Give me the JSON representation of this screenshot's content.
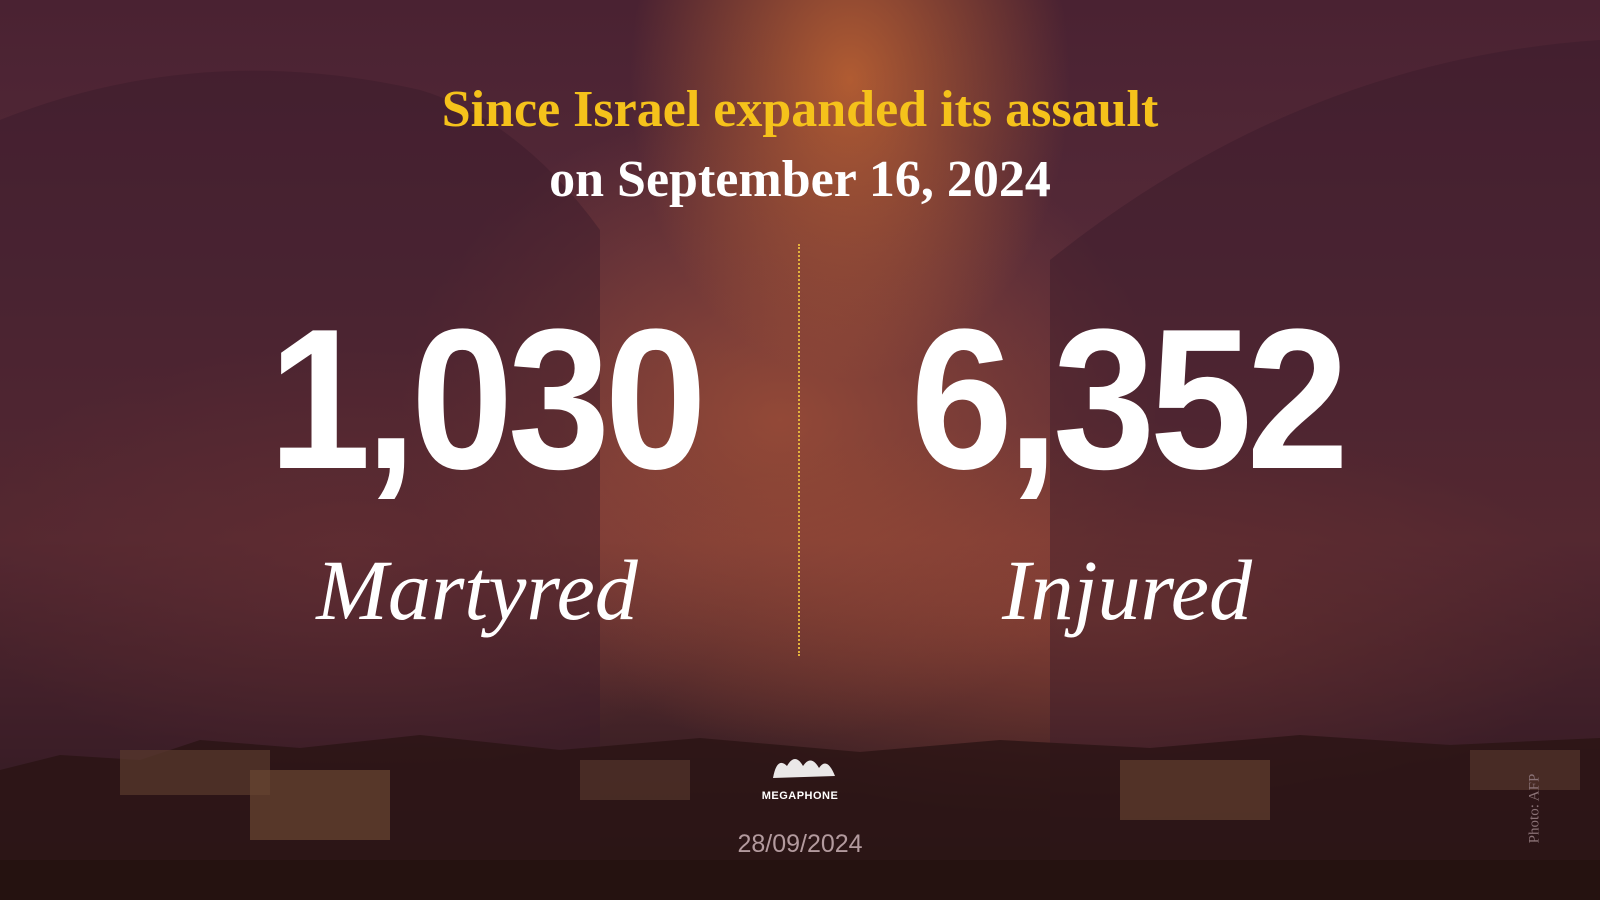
{
  "header": {
    "line1": "Since Israel expanded its assault",
    "line2": "on September 16, 2024"
  },
  "stats": [
    {
      "number": "1,030",
      "label": "Martyred"
    },
    {
      "number": "6,352",
      "label": "Injured"
    }
  ],
  "logo": "MEGAPHONE",
  "date": "28/09/2024",
  "credit": "Photo: AFP"
}
